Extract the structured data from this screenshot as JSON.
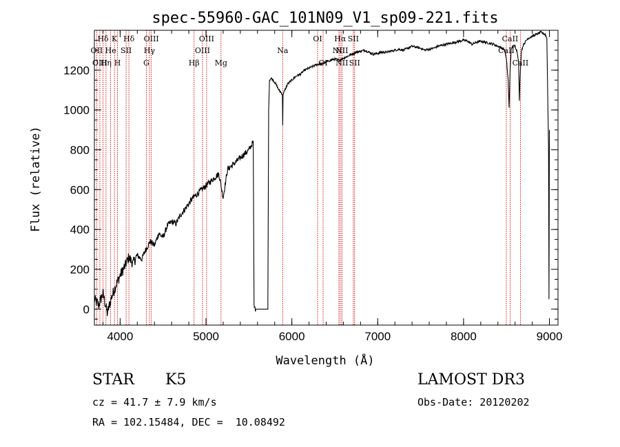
{
  "chart_data": {
    "type": "line",
    "title": "spec-55960-GAC_101N09_V1_sp09-221.fits",
    "xlabel": "Wavelength (Å)",
    "ylabel": "Flux (relative)",
    "xlim": [
      3700,
      9100
    ],
    "ylim": [
      -80,
      1400
    ],
    "x_ticks": [
      4000,
      5000,
      6000,
      7000,
      8000,
      9000
    ],
    "y_ticks": [
      0,
      200,
      400,
      600,
      800,
      1000,
      1200
    ],
    "x_minor_step": 200,
    "y_minor_step": 50,
    "line_color": "#000000",
    "marker_color": "#cc0000",
    "series": [
      {
        "name": "spectrum",
        "x": [
          3700,
          3750,
          3800,
          3850,
          3900,
          3950,
          4000,
          4050,
          4100,
          4150,
          4200,
          4250,
          4300,
          4350,
          4400,
          4450,
          4500,
          4550,
          4600,
          4650,
          4700,
          4750,
          4800,
          4850,
          4900,
          4950,
          5000,
          5050,
          5100,
          5150,
          5200,
          5250,
          5300,
          5350,
          5400,
          5450,
          5500,
          5550,
          5560,
          5580,
          5600,
          5650,
          5700,
          5720,
          5730,
          5740,
          5760,
          5800,
          5850,
          5890,
          5894,
          5898,
          5920,
          5950,
          6000,
          6050,
          6100,
          6150,
          6200,
          6250,
          6300,
          6350,
          6400,
          6450,
          6500,
          6550,
          6600,
          6650,
          6700,
          6750,
          6800,
          6850,
          6900,
          6950,
          7000,
          7050,
          7100,
          7150,
          7200,
          7250,
          7300,
          7350,
          7400,
          7450,
          7500,
          7550,
          7600,
          7650,
          7700,
          7750,
          7800,
          7850,
          7900,
          7950,
          8000,
          8050,
          8100,
          8150,
          8200,
          8250,
          8300,
          8350,
          8400,
          8450,
          8480,
          8500,
          8520,
          8530,
          8542,
          8555,
          8570,
          8600,
          8620,
          8640,
          8650,
          8662,
          8675,
          8700,
          8750,
          8800,
          8850,
          8900,
          8950,
          8970,
          8990,
          8995,
          9000
        ],
        "y": [
          50,
          20,
          80,
          -20,
          60,
          120,
          170,
          210,
          260,
          230,
          270,
          250,
          300,
          340,
          320,
          380,
          360,
          420,
          440,
          430,
          470,
          500,
          530,
          560,
          580,
          600,
          620,
          640,
          660,
          680,
          560,
          700,
          720,
          740,
          760,
          780,
          800,
          840,
          10,
          0,
          0,
          0,
          0,
          0,
          1000,
          1150,
          1160,
          1140,
          1100,
          1080,
          920,
          1080,
          1100,
          1130,
          1150,
          1170,
          1180,
          1200,
          1210,
          1220,
          1230,
          1230,
          1240,
          1250,
          1255,
          1250,
          1260,
          1270,
          1280,
          1290,
          1295,
          1300,
          1290,
          1280,
          1285,
          1290,
          1290,
          1295,
          1300,
          1305,
          1300,
          1310,
          1320,
          1315,
          1310,
          1300,
          1305,
          1310,
          1320,
          1325,
          1330,
          1335,
          1340,
          1345,
          1350,
          1345,
          1330,
          1340,
          1345,
          1340,
          1335,
          1330,
          1320,
          1310,
          1300,
          1250,
          1150,
          1010,
          1200,
          1300,
          1320,
          1320,
          1300,
          1250,
          1050,
          1200,
          1300,
          1330,
          1360,
          1370,
          1380,
          1390,
          1380,
          1360,
          800,
          50,
          900
        ]
      }
    ],
    "line_markers": [
      {
        "label": "Hδ",
        "x": 3801,
        "row": 0
      },
      {
        "label": "OII",
        "x": 3727,
        "row": 1
      },
      {
        "label": "OIII",
        "x": 3764,
        "row": 2
      },
      {
        "label": "K",
        "x": 3934,
        "row": 0
      },
      {
        "label": "He",
        "x": 3889,
        "row": 1
      },
      {
        "label": "Hη",
        "x": 3835,
        "row": 2
      },
      {
        "label": "Hδ",
        "x": 4102,
        "row": 0
      },
      {
        "label": "SII",
        "x": 4070,
        "row": 1
      },
      {
        "label": "H",
        "x": 3969,
        "row": 2
      },
      {
        "label": "OIII",
        "x": 4363,
        "row": 0
      },
      {
        "label": "Hγ",
        "x": 4341,
        "row": 1
      },
      {
        "label": "G",
        "x": 4305,
        "row": 2
      },
      {
        "label": "OIII",
        "x": 5007,
        "row": 0
      },
      {
        "label": "OIII",
        "x": 4959,
        "row": 1
      },
      {
        "label": "Hβ",
        "x": 4861,
        "row": 2
      },
      {
        "label": "Mg",
        "x": 5175,
        "row": 2
      },
      {
        "label": "Na",
        "x": 5893,
        "row": 1
      },
      {
        "label": "OI",
        "x": 6300,
        "row": 0
      },
      {
        "label": "OI",
        "x": 6364,
        "row": 2
      },
      {
        "label": "Hα",
        "x": 6563,
        "row": 0
      },
      {
        "label": "SII",
        "x": 6716,
        "row": 0
      },
      {
        "label": "NII",
        "x": 6548,
        "row": 1
      },
      {
        "label": "NII",
        "x": 6583,
        "row": 1
      },
      {
        "label": "NII",
        "x": 6583,
        "row": 2
      },
      {
        "label": "SII",
        "x": 6731,
        "row": 2
      },
      {
        "label": "CaII",
        "x": 8542,
        "row": 0
      },
      {
        "label": "CaII",
        "x": 8498,
        "row": 1
      },
      {
        "label": "CaII",
        "x": 8662,
        "row": 2
      }
    ]
  },
  "info": {
    "object_type": "STAR",
    "subclass": "K5",
    "survey": "LAMOST DR3",
    "redshift": "cz = 41.7 ± 7.9 km/s",
    "obs_date": "Obs-Date: 20120202",
    "coords": "RA = 102.15484, DEC =  10.08492"
  }
}
